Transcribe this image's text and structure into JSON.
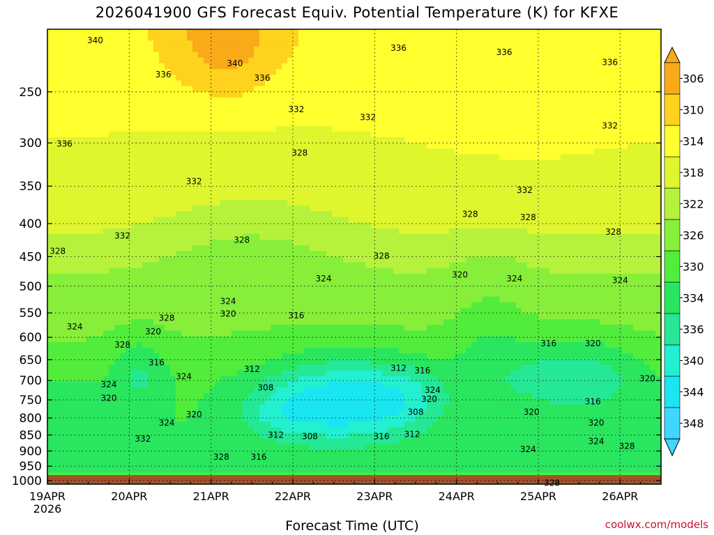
{
  "title": "2026041900 GFS Forecast Equiv. Potential Temperature (K) for KFXE",
  "xlabel": "Forecast Time (UTC)",
  "credit": "coolwx.com/models",
  "chart_data": {
    "type": "heatmap",
    "y_axis": {
      "scale": "log",
      "inverted": true,
      "ticks": [
        250,
        300,
        350,
        400,
        450,
        500,
        550,
        600,
        650,
        700,
        750,
        800,
        850,
        900,
        950,
        1000
      ],
      "range": [
        200,
        1013
      ]
    },
    "x_axis": {
      "range": [
        "2026-04-19 00Z",
        "2026-04-26 12Z"
      ],
      "ticks": [
        {
          "label": "19APR",
          "sub": "2026",
          "t": 0
        },
        {
          "label": "20APR",
          "sub": "",
          "t": 24
        },
        {
          "label": "21APR",
          "sub": "",
          "t": 48
        },
        {
          "label": "22APR",
          "sub": "",
          "t": 72
        },
        {
          "label": "23APR",
          "sub": "",
          "t": 96
        },
        {
          "label": "24APR",
          "sub": "",
          "t": 120
        },
        {
          "label": "25APR",
          "sub": "",
          "t": 144
        },
        {
          "label": "26APR",
          "sub": "",
          "t": 168
        }
      ]
    },
    "grid": true,
    "colorbar": {
      "levels": [
        306,
        310,
        314,
        318,
        322,
        326,
        330,
        334,
        336,
        340,
        344,
        348
      ],
      "colors": [
        "#3fd6ff",
        "#19e6f0",
        "#23f0d0",
        "#24e896",
        "#2ae65e",
        "#52ec3c",
        "#87ef3a",
        "#b6f23c",
        "#dff52e",
        "#ffff2e",
        "#ffd21e",
        "#f9aa18"
      ]
    },
    "contour_labels": [
      {
        "v": "340",
        "t": 14,
        "p": 208
      },
      {
        "v": "336",
        "t": 34,
        "p": 235
      },
      {
        "v": "340",
        "t": 55,
        "p": 226
      },
      {
        "v": "336",
        "t": 63,
        "p": 238
      },
      {
        "v": "336",
        "t": 103,
        "p": 214
      },
      {
        "v": "336",
        "t": 134,
        "p": 217
      },
      {
        "v": "336",
        "t": 165,
        "p": 225
      },
      {
        "v": "332",
        "t": 73,
        "p": 266
      },
      {
        "v": "332",
        "t": 94,
        "p": 274
      },
      {
        "v": "332",
        "t": 165,
        "p": 282
      },
      {
        "v": "336",
        "t": 5,
        "p": 301
      },
      {
        "v": "328",
        "t": 74,
        "p": 311
      },
      {
        "v": "332",
        "t": 43,
        "p": 344
      },
      {
        "v": "332",
        "t": 140,
        "p": 355
      },
      {
        "v": "328",
        "t": 124,
        "p": 387
      },
      {
        "v": "328",
        "t": 141,
        "p": 391
      },
      {
        "v": "332",
        "t": 22,
        "p": 418
      },
      {
        "v": "328",
        "t": 57,
        "p": 424
      },
      {
        "v": "328",
        "t": 166,
        "p": 412
      },
      {
        "v": "328",
        "t": 3,
        "p": 441
      },
      {
        "v": "328",
        "t": 98,
        "p": 449
      },
      {
        "v": "320",
        "t": 121,
        "p": 480
      },
      {
        "v": "324",
        "t": 81,
        "p": 487
      },
      {
        "v": "324",
        "t": 137,
        "p": 487
      },
      {
        "v": "324",
        "t": 168,
        "p": 490
      },
      {
        "v": "324",
        "t": 53,
        "p": 528
      },
      {
        "v": "320",
        "t": 53,
        "p": 552
      },
      {
        "v": "316",
        "t": 73,
        "p": 555
      },
      {
        "v": "324",
        "t": 8,
        "p": 578
      },
      {
        "v": "328",
        "t": 35,
        "p": 560
      },
      {
        "v": "320",
        "t": 31,
        "p": 588
      },
      {
        "v": "328",
        "t": 22,
        "p": 616
      },
      {
        "v": "316",
        "t": 147,
        "p": 613
      },
      {
        "v": "320",
        "t": 160,
        "p": 613
      },
      {
        "v": "316",
        "t": 32,
        "p": 657
      },
      {
        "v": "312",
        "t": 60,
        "p": 672
      },
      {
        "v": "312",
        "t": 103,
        "p": 670
      },
      {
        "v": "316",
        "t": 110,
        "p": 676
      },
      {
        "v": "324",
        "t": 40,
        "p": 690
      },
      {
        "v": "324",
        "t": 113,
        "p": 724
      },
      {
        "v": "320",
        "t": 176,
        "p": 695
      },
      {
        "v": "324",
        "t": 18,
        "p": 710
      },
      {
        "v": "308",
        "t": 64,
        "p": 718
      },
      {
        "v": "320",
        "t": 18,
        "p": 745
      },
      {
        "v": "320",
        "t": 112,
        "p": 748
      },
      {
        "v": "316",
        "t": 160,
        "p": 755
      },
      {
        "v": "308",
        "t": 108,
        "p": 783
      },
      {
        "v": "320",
        "t": 142,
        "p": 783
      },
      {
        "v": "320",
        "t": 43,
        "p": 790
      },
      {
        "v": "324",
        "t": 35,
        "p": 814
      },
      {
        "v": "320",
        "t": 161,
        "p": 814
      },
      {
        "v": "312",
        "t": 67,
        "p": 850
      },
      {
        "v": "308",
        "t": 77,
        "p": 855
      },
      {
        "v": "316",
        "t": 98,
        "p": 855
      },
      {
        "v": "312",
        "t": 107,
        "p": 848
      },
      {
        "v": "332",
        "t": 28,
        "p": 862
      },
      {
        "v": "324",
        "t": 161,
        "p": 870
      },
      {
        "v": "328",
        "t": 170,
        "p": 885
      },
      {
        "v": "324",
        "t": 141,
        "p": 895
      },
      {
        "v": "328",
        "t": 51,
        "p": 920
      },
      {
        "v": "316",
        "t": 62,
        "p": 920
      },
      {
        "v": "328",
        "t": 148,
        "p": 1009
      }
    ]
  }
}
